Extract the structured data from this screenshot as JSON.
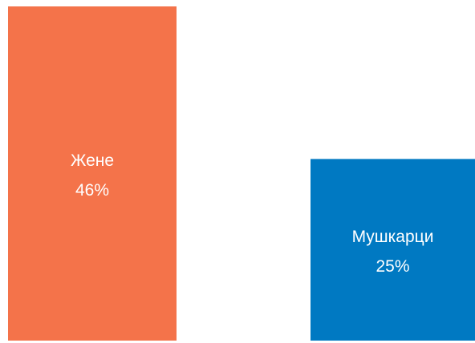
{
  "chart_data": {
    "type": "bar",
    "categories": [
      "Жене",
      "Мушкарци"
    ],
    "values": [
      46,
      25
    ],
    "value_labels": [
      "46%",
      "25%"
    ],
    "colors": [
      "#f4734a",
      "#0079c2"
    ]
  }
}
